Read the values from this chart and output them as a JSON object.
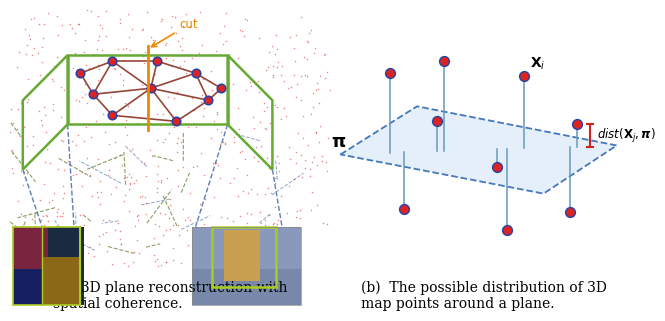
{
  "fig_width": 6.4,
  "fig_height": 3.01,
  "bg_color": "#ffffff",
  "caption_a": "(a)  3D plane reconstruction with\nspatial coherence.",
  "caption_b": "(b)  The possible distribution of 3D\nmap points around a plane.",
  "caption_fontsize": 10.0,
  "plane_color": "#aaccee",
  "plane_edge_color": "#4477bb",
  "point_face_color": "#dd2222",
  "point_edge_color": "#2244aa",
  "point_size": 50,
  "line_color": "#6699bb",
  "dist_color": "#cc2222",
  "pi_label": "$\\mathbf{\\pi}$",
  "xi_label": "$\\mathbf{X}_i$",
  "dist_label": "$dist(\\mathbf{X}_j, \\boldsymbol{\\pi})$",
  "green_box_color": "#66aa33",
  "orange_cut_color": "#ee8800",
  "dark_red_edge": "#883322",
  "blue_dashed_color": "#4466aa",
  "green_dashed_color": "#557722"
}
